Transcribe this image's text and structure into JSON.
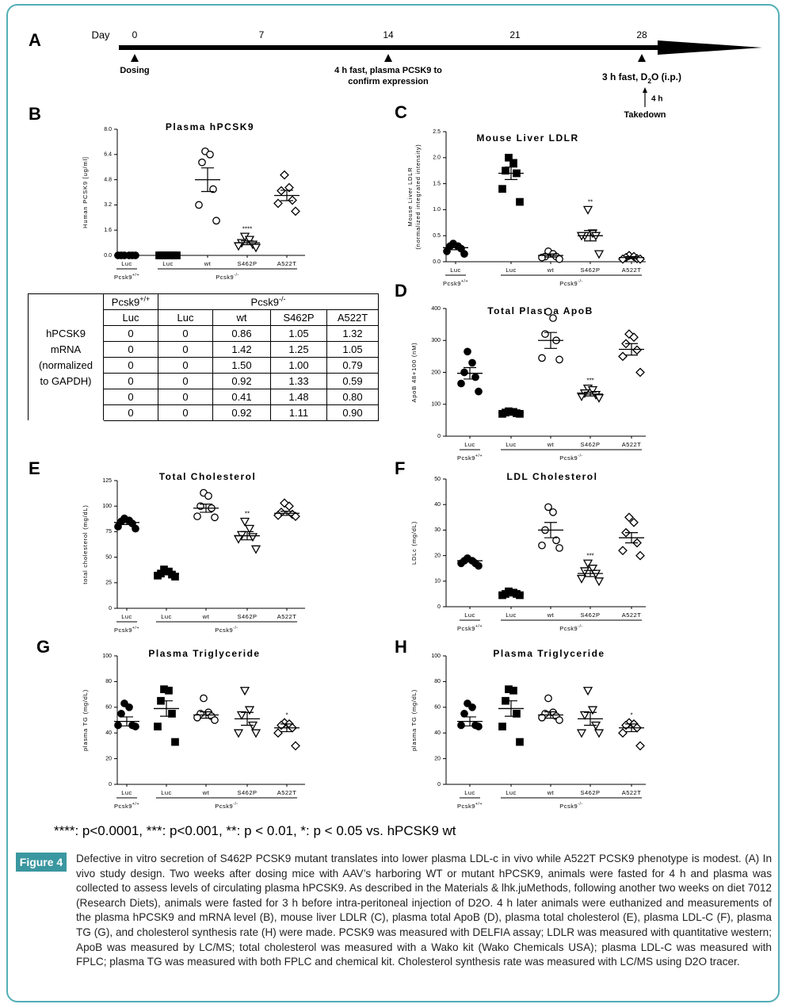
{
  "timeline": {
    "label": "A",
    "axis_label": "Day",
    "days": [
      0,
      7,
      14,
      21,
      28
    ],
    "events": [
      {
        "day": 0,
        "lines": [
          "Dosing"
        ]
      },
      {
        "day": 14,
        "lines": [
          "4 h fast, plasma PCSK9 to",
          "confirm expression"
        ]
      }
    ],
    "final_event": {
      "day": 28,
      "text": "3 h fast, D",
      "sub": "2",
      "text_after": "O (i.p.)",
      "interval": "4 h",
      "end": "Takedown"
    }
  },
  "chart_data": [
    {
      "panel": "B",
      "type": "dot",
      "title": "Plasma hPCSK9",
      "ylabel": [
        "Human PCSK9 [ug/ml]"
      ],
      "color": "#000000",
      "ylim": [
        0,
        8
      ],
      "yticks": [
        {
          "value": 0,
          "label": "0.0"
        },
        1.6,
        3.2,
        4.8,
        6.4,
        {
          "value": 8,
          "label": "8.0"
        }
      ],
      "categories": [
        "Luc",
        "Luc",
        "wt",
        "S462P",
        "A522T"
      ],
      "groups": [
        {
          "name": "Pcsk9",
          "sup": "+/+"
        },
        {
          "name": "Pcsk9",
          "sup": "-/-"
        }
      ],
      "markers": [
        "circle-filled",
        "square-filled",
        "circle-open",
        "triangle-open",
        "diamond-open"
      ],
      "points": [
        [
          0,
          0,
          0,
          0,
          0,
          0
        ],
        [
          0,
          0,
          0,
          0,
          0,
          0
        ],
        [
          6.6,
          6.4,
          5.9,
          4.2,
          3.2,
          2.2
        ],
        [
          1.2,
          1.0,
          0.8,
          0.7,
          0.6,
          0.5
        ],
        [
          5.1,
          4.3,
          4.1,
          3.5,
          3.3,
          2.8
        ]
      ],
      "means": [
        0,
        0,
        4.8,
        0.8,
        3.8
      ],
      "sem": [
        0,
        0,
        0.75,
        0.12,
        0.33
      ],
      "annotations": [
        null,
        null,
        null,
        "****",
        null
      ]
    },
    {
      "panel": "C",
      "type": "dot",
      "title": "Mouse Liver LDLR",
      "ylabel": [
        "Mouse Liver LDLR",
        "(normalized integrated intensity)"
      ],
      "color": "#000000",
      "ylim": [
        0,
        2.5
      ],
      "yticks": [
        {
          "value": 0,
          "label": "0.0"
        },
        0.5,
        {
          "value": 1,
          "label": "1.0"
        },
        1.5,
        {
          "value": 2,
          "label": "2.0"
        },
        2.5
      ],
      "categories": [
        "Luc",
        "Luc",
        "wt",
        "S462P",
        "A522T"
      ],
      "groups": [
        {
          "name": "Pcsk9",
          "sup": "+/+"
        },
        {
          "name": "Pcsk9",
          "sup": "-/-"
        }
      ],
      "markers": [
        "circle-filled",
        "square-filled",
        "circle-open",
        "triangle-open",
        "diamond-open"
      ],
      "points": [
        [
          0.35,
          0.3,
          0.3,
          0.25,
          0.2,
          0.15
        ],
        [
          2.0,
          1.9,
          1.75,
          1.7,
          1.4,
          1.15
        ],
        [
          0.2,
          0.15,
          0.1,
          0.1,
          0.08,
          0.05
        ],
        [
          1.0,
          0.55,
          0.5,
          0.5,
          0.5,
          0.15
        ],
        [
          0.12,
          0.1,
          0.08,
          0.06,
          0.05,
          0.05
        ]
      ],
      "means": [
        0.27,
        1.7,
        0.12,
        0.5,
        0.08
      ],
      "sem": [
        0.04,
        0.12,
        0.03,
        0.1,
        0.02
      ],
      "annotations": [
        null,
        null,
        null,
        "**",
        null
      ]
    },
    {
      "panel": "D",
      "type": "dot",
      "title": "Total Plasma ApoB",
      "ylabel": [
        "ApoB 48+100 (nM)"
      ],
      "color": "#000000",
      "ylim": [
        0,
        400
      ],
      "yticks": [
        0,
        100,
        200,
        300,
        400
      ],
      "categories": [
        "Luc",
        "Luc",
        "wt",
        "S462P",
        "A522T"
      ],
      "groups": [
        {
          "name": "Pcsk9",
          "sup": "+/+"
        },
        {
          "name": "Pcsk9",
          "sup": "-/-"
        }
      ],
      "markers": [
        "circle-filled",
        "square-filled",
        "circle-open",
        "triangle-open",
        "diamond-open"
      ],
      "points": [
        [
          265,
          230,
          200,
          185,
          165,
          140
        ],
        [
          78,
          76,
          74,
          72,
          70,
          70
        ],
        [
          390,
          370,
          320,
          300,
          245,
          240
        ],
        [
          150,
          145,
          135,
          130,
          125,
          120
        ],
        [
          320,
          310,
          290,
          270,
          250,
          200
        ]
      ],
      "means": [
        197,
        73,
        300,
        132,
        272
      ],
      "sem": [
        18,
        2,
        25,
        6,
        18
      ],
      "annotations": [
        null,
        null,
        null,
        "***",
        null
      ]
    },
    {
      "panel": "E",
      "type": "dot",
      "title": "Total Cholesterol",
      "ylabel": [
        "total cholesterol (mg/dL)"
      ],
      "color": "#000000",
      "ylim": [
        0,
        125
      ],
      "yticks": [
        0,
        25,
        50,
        75,
        100,
        125
      ],
      "categories": [
        "Luc",
        "Luc",
        "wt",
        "S462P",
        "A522T"
      ],
      "groups": [
        {
          "name": "Pcsk9",
          "sup": "+/+"
        },
        {
          "name": "Pcsk9",
          "sup": "-/-"
        }
      ],
      "markers": [
        "circle-filled",
        "square-filled",
        "circle-open",
        "triangle-open",
        "diamond-open"
      ],
      "points": [
        [
          88,
          86,
          85,
          83,
          80,
          78
        ],
        [
          38,
          36,
          34,
          33,
          32,
          31
        ],
        [
          113,
          110,
          100,
          98,
          90,
          89
        ],
        [
          85,
          78,
          72,
          70,
          68,
          58
        ],
        [
          103,
          100,
          94,
          92,
          91,
          90
        ]
      ],
      "means": [
        84,
        34,
        98,
        71,
        93
      ],
      "sem": [
        2,
        1,
        4,
        4,
        2
      ],
      "annotations": [
        null,
        null,
        null,
        "**",
        null
      ]
    },
    {
      "panel": "F",
      "type": "dot",
      "title": "LDL Cholesterol",
      "ylabel": [
        "LDLc (mg/dL)"
      ],
      "color": "#000000",
      "ylim": [
        0,
        50
      ],
      "yticks": [
        0,
        10,
        20,
        30,
        40,
        50
      ],
      "categories": [
        "Luc",
        "Luc",
        "wt",
        "S462P",
        "A522T"
      ],
      "groups": [
        {
          "name": "Pcsk9",
          "sup": "+/+"
        },
        {
          "name": "Pcsk9",
          "sup": "-/-"
        }
      ],
      "markers": [
        "circle-filled",
        "square-filled",
        "circle-open",
        "triangle-open",
        "diamond-open"
      ],
      "points": [
        [
          19,
          18,
          18,
          17,
          17,
          16
        ],
        [
          6,
          5.5,
          5,
          5,
          4.5,
          4.5
        ],
        [
          39,
          37,
          30,
          26,
          24,
          23
        ],
        [
          17,
          15,
          14,
          13,
          11,
          10
        ],
        [
          35,
          33,
          29,
          25,
          22,
          20
        ]
      ],
      "means": [
        18,
        5,
        30,
        13,
        27
      ],
      "sem": [
        0.5,
        0.3,
        3,
        1.2,
        2
      ],
      "annotations": [
        null,
        null,
        null,
        "***",
        null
      ]
    },
    {
      "panel": "G",
      "type": "dot",
      "title": "Plasma Triglyceride",
      "ylabel": [
        "plasma TG (mg/dL)"
      ],
      "color": "#000000",
      "ylim": [
        0,
        100
      ],
      "yticks": [
        0,
        20,
        40,
        60,
        80,
        100
      ],
      "categories": [
        "Luc",
        "Luc",
        "wt",
        "S462P",
        "A522T"
      ],
      "groups": [
        {
          "name": "Pcsk9",
          "sup": "+/+"
        },
        {
          "name": "Pcsk9",
          "sup": "-/-"
        }
      ],
      "markers": [
        "circle-filled",
        "square-filled",
        "circle-open",
        "triangle-open",
        "diamond-open"
      ],
      "points": [
        [
          63,
          60,
          55,
          46,
          46,
          45
        ],
        [
          74,
          73,
          65,
          55,
          45,
          33
        ],
        [
          67,
          56,
          55,
          53,
          52,
          50
        ],
        [
          73,
          58,
          54,
          46,
          40,
          40
        ],
        [
          48,
          47,
          46,
          44,
          40,
          30
        ]
      ],
      "means": [
        49,
        59,
        54,
        51,
        44
      ],
      "sem": [
        3.5,
        6,
        2.5,
        5,
        3
      ],
      "annotations": [
        null,
        null,
        null,
        null,
        "*"
      ]
    },
    {
      "panel": "H",
      "type": "dot",
      "title": "Plasma Triglyceride",
      "ylabel": [
        "plasma TG (mg/dL)"
      ],
      "color": "#000000",
      "ylim": [
        0,
        100
      ],
      "yticks": [
        0,
        20,
        40,
        60,
        80,
        100
      ],
      "categories": [
        "Luc",
        "Luc",
        "wt",
        "S462P",
        "A522T"
      ],
      "groups": [
        {
          "name": "Pcsk9",
          "sup": "+/+"
        },
        {
          "name": "Pcsk9",
          "sup": "-/-"
        }
      ],
      "markers": [
        "circle-filled",
        "square-filled",
        "circle-open",
        "triangle-open",
        "diamond-open"
      ],
      "points": [
        [
          63,
          60,
          55,
          46,
          46,
          45
        ],
        [
          74,
          73,
          65,
          55,
          45,
          33
        ],
        [
          67,
          56,
          55,
          53,
          52,
          50
        ],
        [
          73,
          58,
          54,
          46,
          40,
          40
        ],
        [
          48,
          47,
          46,
          44,
          40,
          30
        ]
      ],
      "means": [
        49,
        59,
        54,
        51,
        44
      ],
      "sem": [
        3.5,
        6,
        2.5,
        5,
        3
      ],
      "annotations": [
        null,
        null,
        null,
        null,
        "*"
      ]
    }
  ],
  "table": {
    "row_label": [
      "hPCSK9",
      "mRNA",
      "(normalized",
      "to GAPDH)"
    ],
    "groups": [
      {
        "name": "Pcsk9",
        "sup": "+/+"
      },
      {
        "name": "Pcsk9",
        "sup": "-/-"
      }
    ],
    "columns": [
      "Luc",
      "Luc",
      "wt",
      "S462P",
      "A522T"
    ],
    "rows": [
      [
        "0",
        "0",
        "0.86",
        "1.05",
        "1.32"
      ],
      [
        "0",
        "0",
        "1.42",
        "1.25",
        "1.05"
      ],
      [
        "0",
        "0",
        "1.50",
        "1.00",
        "0.79"
      ],
      [
        "0",
        "0",
        "0.92",
        "1.33",
        "0.59"
      ],
      [
        "0",
        "0",
        "0.41",
        "1.48",
        "0.80"
      ],
      [
        "0",
        "0",
        "0.92",
        "1.11",
        "0.90"
      ]
    ]
  },
  "footnote": "****: p<0.0001, ***: p<0.001, **: p < 0.01, *: p < 0.05 vs. hPCSK9 wt",
  "caption": {
    "label": "Figure 4",
    "text": "Defective in vitro secretion of S462P PCSK9 mutant translates into lower plasma LDL-c in vivo while A522T PCSK9 phenotype is modest. (A) In vivo study design. Two weeks after dosing mice with AAV’s harboring WT or mutant hPCSK9, animals were fasted for 4 h and plasma was collected to assess levels of circulating plasma hPCSK9. As described in the Materials & lhk.juMethods, following another two weeks on diet 7012 (Research Diets), animals were fasted for 3 h before intra-peritoneal injection of D2O. 4 h later animals were euthanized and measurements of the plasma hPCSK9 and mRNA level (B), mouse liver LDLR (C), plasma total ApoB (D), plasma total cholesterol (E), plasma LDL-C (F), plasma TG (G), and cholesterol synthesis rate (H) were made. PCSK9 was measured with DELFIA assay; LDLR was measured with quantitative western; ApoB was measured by LC/MS; total cholesterol was measured with a Wako kit (Wako Chemicals USA); plasma LDL-C was measured with FPLC; plasma TG was measured with both FPLC and chemical kit. Cholesterol synthesis rate was measured with LC/MS using D2O tracer."
  }
}
